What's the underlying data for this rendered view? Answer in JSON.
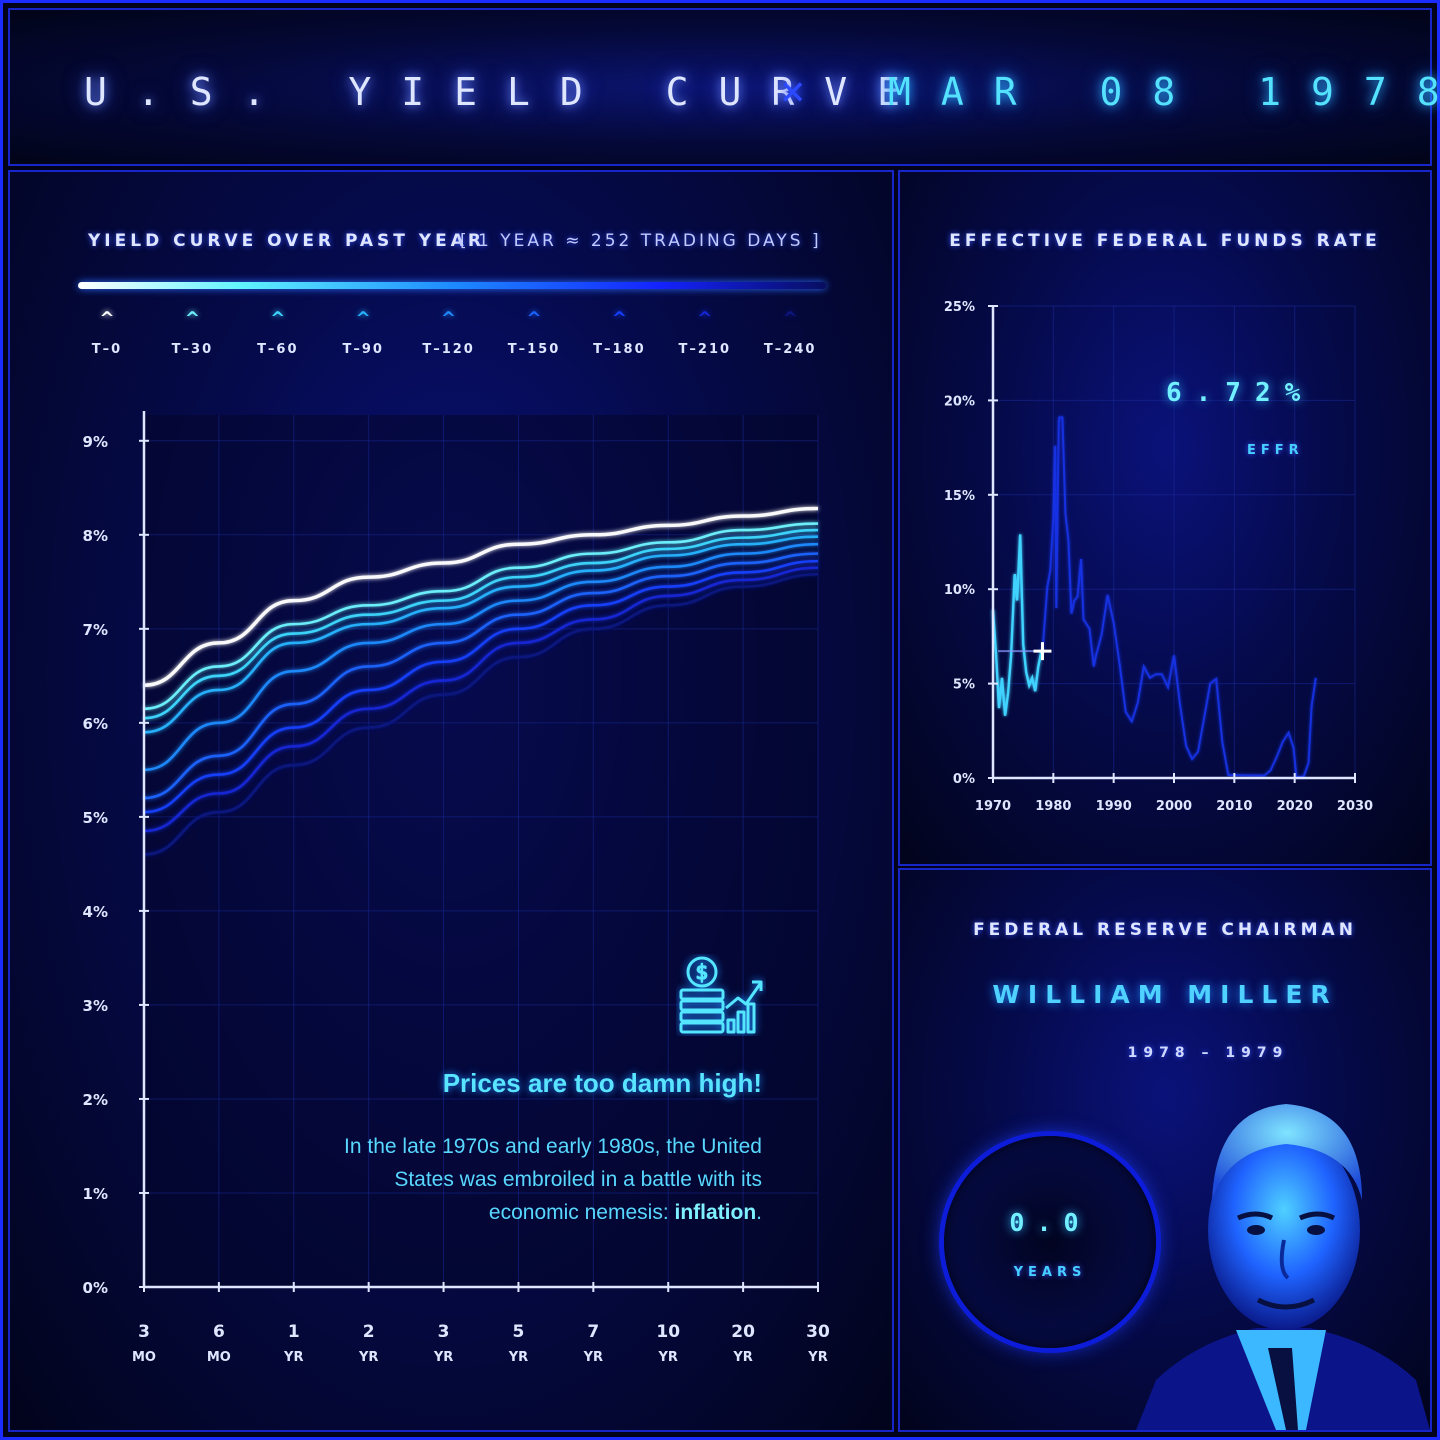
{
  "header": {
    "title_left": "U.S. YIELD CURVE",
    "separator": "×",
    "title_date": "MAR 08 1978"
  },
  "yield_panel": {
    "title": "YIELD CURVE OVER PAST YEAR",
    "subtitle": "[ 1 YEAR ≈ 252 TRADING DAYS ]",
    "legend": [
      {
        "label": "T–0",
        "color": "#ffffff"
      },
      {
        "label": "T–30",
        "color": "#6ff5ff"
      },
      {
        "label": "T–60",
        "color": "#3fd9ff"
      },
      {
        "label": "T–90",
        "color": "#28b4ff"
      },
      {
        "label": "T–120",
        "color": "#1f8cff"
      },
      {
        "label": "T–150",
        "color": "#1a64ff"
      },
      {
        "label": "T–180",
        "color": "#1640ff"
      },
      {
        "label": "T–210",
        "color": "#1428d8"
      },
      {
        "label": "T–240",
        "color": "#0d1680"
      }
    ],
    "callout": {
      "icon": "money-stack-growth-icon",
      "title": "Prices are too damn high!",
      "body_prefix": "In the late 1970s and early 1980s, the United States was embroiled in a battle with its economic nemesis: ",
      "body_emphasis": "inflation",
      "body_suffix": "."
    }
  },
  "effr_panel": {
    "title": "EFFECTIVE FEDERAL FUNDS RATE",
    "value": "6.72%",
    "value_label": "EFFR"
  },
  "chairman_panel": {
    "title": "FEDERAL RESERVE CHAIRMAN",
    "name": "WILLIAM MILLER",
    "term": "1978 – 1979",
    "tenure_value": "0.0",
    "tenure_unit": "YEARS",
    "portrait_icon": "chairman-portrait-icon"
  },
  "chart_data": [
    {
      "type": "line",
      "title": "YIELD CURVE OVER PAST YEAR",
      "categories": [
        "3 MO",
        "6 MO",
        "1 YR",
        "2 YR",
        "3 YR",
        "5 YR",
        "7 YR",
        "10 YR",
        "20 YR",
        "30 YR"
      ],
      "ylim": [
        0,
        9
      ],
      "yticks": [
        "0%",
        "1%",
        "2%",
        "3%",
        "4%",
        "5%",
        "6%",
        "7%",
        "8%",
        "9%"
      ],
      "grid": true,
      "series": [
        {
          "name": "T–0",
          "values": [
            6.4,
            6.85,
            7.3,
            7.55,
            7.7,
            7.9,
            8.0,
            8.1,
            8.2,
            8.28
          ]
        },
        {
          "name": "T–30",
          "values": [
            6.15,
            6.6,
            7.05,
            7.25,
            7.4,
            7.65,
            7.8,
            7.92,
            8.05,
            8.12
          ]
        },
        {
          "name": "T–60",
          "values": [
            6.05,
            6.5,
            6.95,
            7.15,
            7.3,
            7.55,
            7.7,
            7.85,
            7.97,
            8.05
          ]
        },
        {
          "name": "T–90",
          "values": [
            5.9,
            6.35,
            6.85,
            7.05,
            7.22,
            7.45,
            7.62,
            7.78,
            7.9,
            7.98
          ]
        },
        {
          "name": "T–120",
          "values": [
            5.5,
            6.0,
            6.55,
            6.85,
            7.05,
            7.3,
            7.5,
            7.66,
            7.8,
            7.9
          ]
        },
        {
          "name": "T–150",
          "values": [
            5.2,
            5.65,
            6.2,
            6.6,
            6.85,
            7.15,
            7.38,
            7.56,
            7.7,
            7.8
          ]
        },
        {
          "name": "T–180",
          "values": [
            5.05,
            5.45,
            5.95,
            6.35,
            6.65,
            7.0,
            7.25,
            7.45,
            7.6,
            7.72
          ]
        },
        {
          "name": "T–210",
          "values": [
            4.85,
            5.25,
            5.75,
            6.15,
            6.45,
            6.85,
            7.1,
            7.35,
            7.52,
            7.65
          ]
        },
        {
          "name": "T–240",
          "values": [
            4.6,
            5.05,
            5.55,
            5.95,
            6.3,
            6.7,
            7.0,
            7.25,
            7.45,
            7.58
          ]
        }
      ]
    },
    {
      "type": "line",
      "title": "EFFECTIVE FEDERAL FUNDS RATE",
      "xlim": [
        1970,
        2030
      ],
      "xticks": [
        "1970",
        "1980",
        "1990",
        "2000",
        "2010",
        "2020",
        "2030"
      ],
      "ylim": [
        0,
        25
      ],
      "yticks": [
        "0%",
        "5%",
        "10%",
        "15%",
        "20%",
        "25%"
      ],
      "grid": true,
      "marker": {
        "x": 1978.2,
        "y": 6.72
      },
      "series": [
        {
          "values": [
            [
              1970,
              8.9
            ],
            [
              1970.5,
              6.6
            ],
            [
              1971,
              3.7
            ],
            [
              1971.5,
              5.3
            ],
            [
              1972,
              3.3
            ],
            [
              1972.5,
              4.5
            ],
            [
              1973,
              6.5
            ],
            [
              1973.6,
              10.8
            ],
            [
              1974,
              9.4
            ],
            [
              1974.5,
              12.9
            ],
            [
              1975,
              7.1
            ],
            [
              1975.5,
              5.6
            ],
            [
              1976,
              4.9
            ],
            [
              1976.5,
              5.3
            ],
            [
              1977,
              4.6
            ],
            [
              1977.5,
              5.9
            ],
            [
              1978,
              6.7
            ],
            [
              1978.2,
              6.72
            ],
            [
              1978.5,
              8.0
            ],
            [
              1979,
              10.1
            ],
            [
              1979.5,
              11.0
            ],
            [
              1980,
              13.8
            ],
            [
              1980.3,
              17.6
            ],
            [
              1980.5,
              9.0
            ],
            [
              1980.9,
              18.9
            ],
            [
              1981,
              19.1
            ],
            [
              1981.5,
              19.1
            ],
            [
              1982,
              14.0
            ],
            [
              1982.5,
              12.6
            ],
            [
              1983,
              8.7
            ],
            [
              1983.5,
              9.4
            ],
            [
              1984,
              9.6
            ],
            [
              1984.6,
              11.6
            ],
            [
              1985,
              8.4
            ],
            [
              1986,
              7.9
            ],
            [
              1986.7,
              5.9
            ],
            [
              1987,
              6.4
            ],
            [
              1988,
              7.6
            ],
            [
              1989,
              9.7
            ],
            [
              1990,
              8.2
            ],
            [
              1991,
              6.0
            ],
            [
              1992,
              3.5
            ],
            [
              1993,
              3.0
            ],
            [
              1994,
              4.0
            ],
            [
              1995,
              5.9
            ],
            [
              1996,
              5.3
            ],
            [
              1997,
              5.5
            ],
            [
              1998,
              5.5
            ],
            [
              1999,
              4.8
            ],
            [
              2000,
              6.5
            ],
            [
              2001,
              3.9
            ],
            [
              2002,
              1.7
            ],
            [
              2003,
              1.0
            ],
            [
              2004,
              1.4
            ],
            [
              2005,
              3.2
            ],
            [
              2006,
              5.0
            ],
            [
              2007,
              5.25
            ],
            [
              2008,
              1.9
            ],
            [
              2009,
              0.16
            ],
            [
              2012,
              0.14
            ],
            [
              2015,
              0.13
            ],
            [
              2016,
              0.4
            ],
            [
              2017,
              1.1
            ],
            [
              2018,
              1.9
            ],
            [
              2019,
              2.4
            ],
            [
              2019.8,
              1.6
            ],
            [
              2020.3,
              0.05
            ],
            [
              2021.5,
              0.08
            ],
            [
              2022.3,
              0.8
            ],
            [
              2022.8,
              3.8
            ],
            [
              2023.5,
              5.3
            ]
          ]
        }
      ]
    }
  ]
}
